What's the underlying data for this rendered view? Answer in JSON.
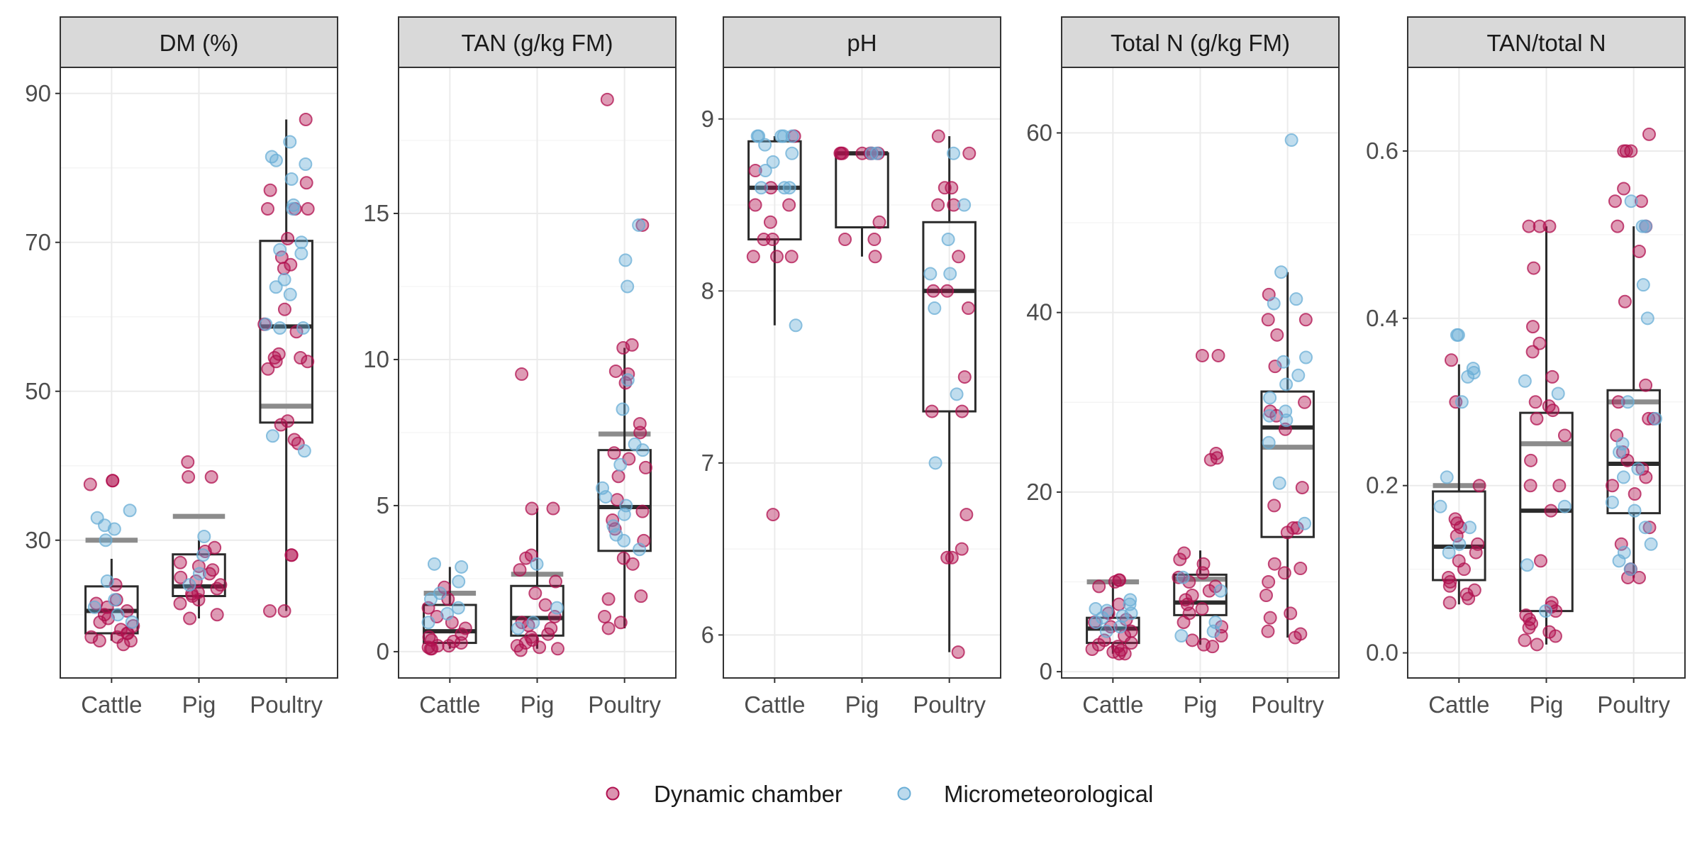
{
  "colors": {
    "dynamic_chamber": "#b0104f",
    "micrometeorological": "#6aaed6",
    "box": "#2b2b2b",
    "reference_line": "#8c8c8c"
  },
  "legend": {
    "items": [
      {
        "label": "Dynamic chamber",
        "series": "dynamic_chamber"
      },
      {
        "label": "Micrometeorological",
        "series": "micrometeorological"
      }
    ],
    "placement": "bottom"
  },
  "chart_data": {
    "type": "box",
    "categories": [
      "Cattle",
      "Pig",
      "Poultry"
    ],
    "panels": [
      {
        "title": "DM (%)",
        "ylim": [
          11.5,
          93.5
        ],
        "yticks": [
          30,
          50,
          70,
          90
        ],
        "boxes": [
          {
            "category": "Cattle",
            "q1": 17.5,
            "median": 20.5,
            "q3": 23.8,
            "whisker_low": 16.5,
            "whisker_high": 27.5,
            "reference": 30
          },
          {
            "category": "Pig",
            "q1": 22.5,
            "median": 23.8,
            "q3": 28.1,
            "whisker_low": 19.5,
            "whisker_high": 30.0,
            "reference": 33.2
          },
          {
            "category": "Poultry",
            "q1": 45.8,
            "median": 58.7,
            "q3": 70.2,
            "whisker_low": 20.5,
            "whisker_high": 86.5,
            "reference": 48
          }
        ],
        "points": [
          {
            "category": "Cattle",
            "dynamic_chamber": [
              38,
              38,
              37.5,
              24,
              22,
              21,
              20.5,
              20,
              19.5,
              19,
              18.5,
              18,
              17.5,
              17.5,
              17,
              17,
              16.5,
              16.5,
              16,
              21.5
            ],
            "micrometeorological": [
              34,
              33,
              32,
              31.5,
              30,
              24.5,
              22,
              21,
              20,
              19
            ]
          },
          {
            "category": "Pig",
            "dynamic_chamber": [
              40.5,
              38.5,
              38.5,
              29,
              28.5,
              27,
              26.5,
              26,
              25.5,
              25,
              24.5,
              24,
              23.5,
              23,
              22.5,
              22,
              21.5,
              20,
              19.5,
              22.8
            ],
            "micrometeorological": [
              30.5,
              28,
              25.5,
              24
            ]
          },
          {
            "category": "Poultry",
            "dynamic_chamber": [
              86.5,
              78,
              77,
              74.5,
              74.5,
              74.5,
              70.5,
              68,
              67,
              66.5,
              61,
              59,
              58,
              55,
              54.5,
              54.5,
              54,
              54,
              53,
              46,
              45.5,
              43.5,
              43,
              28,
              28,
              20.5,
              20.5
            ],
            "micrometeorological": [
              83.5,
              81.5,
              81,
              80.5,
              78.5,
              75,
              70,
              69,
              68.5,
              65,
              64,
              63,
              59,
              58.5,
              58.5,
              44,
              42,
              74.5
            ]
          }
        ]
      },
      {
        "title": "TAN (g/kg FM)",
        "ylim": [
          -0.9,
          20.0
        ],
        "yticks": [
          0,
          5,
          10,
          15
        ],
        "boxes": [
          {
            "category": "Cattle",
            "q1": 0.3,
            "median": 0.7,
            "q3": 1.6,
            "whisker_low": 0.1,
            "whisker_high": 2.9,
            "reference": 2.0
          },
          {
            "category": "Pig",
            "q1": 0.55,
            "median": 1.15,
            "q3": 2.25,
            "whisker_low": 0.1,
            "whisker_high": 4.9,
            "reference": 2.65
          },
          {
            "category": "Poultry",
            "q1": 3.45,
            "median": 4.95,
            "q3": 6.9,
            "whisker_low": 0.8,
            "whisker_high": 10.4,
            "reference": 7.45
          }
        ],
        "points": [
          {
            "category": "Cattle",
            "dynamic_chamber": [
              2.2,
              1.8,
              1.5,
              1.2,
              1.0,
              0.8,
              0.6,
              0.5,
              0.4,
              0.3,
              0.2,
              0.2,
              0.1,
              0.1,
              0.15,
              0.35
            ],
            "micrometeorological": [
              3.0,
              2.9,
              2.4,
              2.0,
              1.8,
              1.5,
              1.3,
              1.0
            ]
          },
          {
            "category": "Pig",
            "dynamic_chamber": [
              9.5,
              4.9,
              4.9,
              3.3,
              3.2,
              2.8,
              2.4,
              2.0,
              1.6,
              1.2,
              1.0,
              0.9,
              0.8,
              0.6,
              0.5,
              0.4,
              0.3,
              0.2,
              0.15,
              0.1,
              0.05
            ],
            "micrometeorological": [
              3.0,
              1.5,
              1.0,
              0.8
            ]
          },
          {
            "category": "Poultry",
            "dynamic_chamber": [
              18.9,
              14.6,
              10.5,
              10.4,
              9.6,
              9.5,
              9.2,
              7.8,
              7.5,
              6.8,
              6.6,
              6.3,
              6.0,
              5.2,
              4.8,
              4.5,
              4.2,
              3.8,
              3.2,
              3.0,
              1.9,
              1.8,
              1.2,
              1.0,
              0.8
            ],
            "micrometeorological": [
              14.6,
              13.4,
              12.5,
              9.3,
              8.3,
              7.1,
              6.9,
              6.4,
              5.6,
              5.3,
              5.0,
              4.7,
              4.3,
              4.0,
              3.8,
              3.5
            ]
          }
        ]
      },
      {
        "title": "pH",
        "ylim": [
          5.75,
          9.3
        ],
        "yticks": [
          6,
          7,
          8,
          9
        ],
        "boxes": [
          {
            "category": "Cattle",
            "q1": 8.3,
            "median": 8.6,
            "q3": 8.87,
            "whisker_low": 7.8,
            "whisker_high": 8.9
          },
          {
            "category": "Pig",
            "q1": 8.37,
            "median": 8.8,
            "q3": 8.8,
            "whisker_low": 8.2,
            "whisker_high": 8.8
          },
          {
            "category": "Poultry",
            "q1": 7.3,
            "median": 8.0,
            "q3": 8.4,
            "whisker_low": 5.9,
            "whisker_high": 8.9
          }
        ],
        "points": [
          {
            "category": "Cattle",
            "dynamic_chamber": [
              8.9,
              8.7,
              8.6,
              8.5,
              8.5,
              8.4,
              8.3,
              8.3,
              8.2,
              8.2,
              8.2,
              6.7
            ],
            "micrometeorological": [
              8.9,
              8.9,
              8.9,
              8.9,
              8.9,
              8.85,
              8.8,
              8.75,
              8.7,
              8.6,
              8.6,
              8.6,
              7.8
            ]
          },
          {
            "category": "Pig",
            "dynamic_chamber": [
              8.8,
              8.8,
              8.8,
              8.8,
              8.8,
              8.8,
              8.8,
              8.4,
              8.3,
              8.3,
              8.2
            ],
            "micrometeorological": [
              8.8,
              8.8
            ]
          },
          {
            "category": "Poultry",
            "dynamic_chamber": [
              8.9,
              8.8,
              8.6,
              8.6,
              8.5,
              8.5,
              8.2,
              8.0,
              8.0,
              7.9,
              7.5,
              7.3,
              7.3,
              6.7,
              6.5,
              6.45,
              6.45,
              5.9
            ],
            "micrometeorological": [
              8.8,
              8.5,
              8.3,
              8.1,
              8.1,
              7.9,
              7.4,
              7.0
            ]
          }
        ]
      },
      {
        "title": "Total N (g/kg FM)",
        "ylim": [
          -0.7,
          67.3
        ],
        "yticks": [
          0,
          20,
          40,
          60
        ],
        "boxes": [
          {
            "category": "Cattle",
            "q1": 3.2,
            "median": 4.8,
            "q3": 6.0,
            "whisker_low": 2.0,
            "whisker_high": 10.0,
            "reference": 10.0
          },
          {
            "category": "Pig",
            "q1": 6.3,
            "median": 7.7,
            "q3": 10.8,
            "whisker_low": 3.0,
            "whisker_high": 13.5,
            "reference": 10.3
          },
          {
            "category": "Poultry",
            "q1": 15.0,
            "median": 27.2,
            "q3": 31.2,
            "whisker_low": 3.8,
            "whisker_high": 44.5,
            "reference": 25.0
          }
        ],
        "points": [
          {
            "category": "Cattle",
            "dynamic_chamber": [
              10.2,
              10.2,
              10.0,
              9.5,
              7.5,
              6.5,
              5.8,
              5.5,
              5.0,
              4.5,
              4.0,
              3.5,
              3.2,
              3.0,
              2.8,
              2.5,
              2.2,
              2.0,
              2.0,
              2.4
            ],
            "micrometeorological": [
              8.0,
              7.5,
              7.0,
              6.8,
              6.5,
              6.2,
              6.0,
              5.5,
              5.0,
              4.5
            ]
          },
          {
            "category": "Pig",
            "dynamic_chamber": [
              35.2,
              35.2,
              24.3,
              23.8,
              23.6,
              13.2,
              12.5,
              12.0,
              11.0,
              10.5,
              10.0,
              9.5,
              9.0,
              8.5,
              8.0,
              7.5,
              7.0,
              6.5,
              5.5,
              5.0,
              4.0,
              3.5,
              3.0,
              2.8
            ],
            "micrometeorological": [
              10.5,
              9.0,
              5.5,
              4.5,
              4.0
            ]
          },
          {
            "category": "Poultry",
            "dynamic_chamber": [
              42.0,
              39.2,
              39.2,
              37.5,
              34.0,
              30.0,
              29.0,
              28.5,
              27.0,
              20.5,
              18.5,
              16.0,
              16.0,
              15.5,
              12.0,
              11.5,
              11.0,
              10.0,
              8.5,
              6.5,
              6.0,
              4.5,
              4.2,
              3.8
            ],
            "micrometeorological": [
              59.2,
              44.5,
              41.5,
              41.0,
              35.0,
              34.5,
              33.0,
              32.0,
              30.5,
              29.0,
              28.5,
              28.0,
              25.5,
              21.0,
              16.5
            ]
          }
        ]
      },
      {
        "title": "TAN/total N",
        "ylim": [
          -0.03,
          0.7
        ],
        "yticks": [
          0.0,
          0.2,
          0.4,
          0.6
        ],
        "ytick_labels": [
          "0.0",
          "0.2",
          "0.4",
          "0.6"
        ],
        "boxes": [
          {
            "category": "Cattle",
            "q1": 0.087,
            "median": 0.127,
            "q3": 0.193,
            "whisker_low": 0.058,
            "whisker_high": 0.345,
            "reference": 0.2
          },
          {
            "category": "Pig",
            "q1": 0.05,
            "median": 0.17,
            "q3": 0.287,
            "whisker_low": 0.01,
            "whisker_high": 0.51,
            "reference": 0.25
          },
          {
            "category": "Poultry",
            "q1": 0.167,
            "median": 0.226,
            "q3": 0.314,
            "whisker_low": 0.09,
            "whisker_high": 0.51,
            "reference": 0.3
          }
        ],
        "points": [
          {
            "category": "Cattle",
            "dynamic_chamber": [
              0.35,
              0.3,
              0.2,
              0.16,
              0.155,
              0.15,
              0.14,
              0.13,
              0.12,
              0.11,
              0.1,
              0.09,
              0.085,
              0.08,
              0.075,
              0.07,
              0.065,
              0.06
            ],
            "micrometeorological": [
              0.38,
              0.38,
              0.34,
              0.335,
              0.33,
              0.3,
              0.21,
              0.175,
              0.15,
              0.13,
              0.12
            ]
          },
          {
            "category": "Pig",
            "dynamic_chamber": [
              0.51,
              0.51,
              0.51,
              0.46,
              0.39,
              0.37,
              0.36,
              0.33,
              0.3,
              0.295,
              0.29,
              0.28,
              0.26,
              0.23,
              0.2,
              0.2,
              0.17,
              0.11,
              0.06,
              0.055,
              0.05,
              0.045,
              0.04,
              0.035,
              0.03,
              0.025,
              0.02,
              0.015,
              0.01
            ],
            "micrometeorological": [
              0.325,
              0.31,
              0.175,
              0.105,
              0.05
            ]
          },
          {
            "category": "Poultry",
            "dynamic_chamber": [
              0.62,
              0.6,
              0.6,
              0.6,
              0.555,
              0.54,
              0.54,
              0.51,
              0.51,
              0.48,
              0.42,
              0.32,
              0.3,
              0.28,
              0.28,
              0.26,
              0.24,
              0.23,
              0.22,
              0.21,
              0.2,
              0.19,
              0.15,
              0.13,
              0.1,
              0.09,
              0.09
            ],
            "micrometeorological": [
              0.54,
              0.51,
              0.51,
              0.44,
              0.4,
              0.3,
              0.28,
              0.25,
              0.24,
              0.22,
              0.21,
              0.18,
              0.17,
              0.15,
              0.13,
              0.12,
              0.11,
              0.1
            ]
          }
        ]
      }
    ]
  }
}
